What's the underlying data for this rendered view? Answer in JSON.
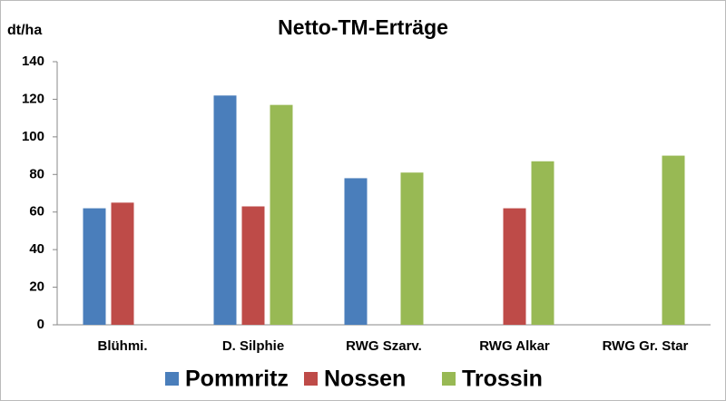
{
  "chart_data": {
    "type": "bar",
    "title": "Netto-TM-Erträge",
    "y_label": "dt/ha",
    "categories": [
      "Blühmi.",
      "D. Silphie",
      "RWG Szarv.",
      "RWG Alkar",
      "RWG Gr. Star"
    ],
    "series": [
      {
        "name": "Pommritz",
        "color": "#4a7ebb",
        "values": [
          62,
          122,
          78,
          null,
          null
        ]
      },
      {
        "name": "Nossen",
        "color": "#be4b48",
        "values": [
          65,
          63,
          null,
          62,
          null
        ]
      },
      {
        "name": "Trossin",
        "color": "#98b954",
        "values": [
          null,
          117,
          81,
          87,
          90
        ]
      }
    ],
    "ylim": [
      0,
      140
    ],
    "yticks": [
      0,
      20,
      40,
      60,
      80,
      100,
      120,
      140
    ],
    "legend": "bottom"
  }
}
